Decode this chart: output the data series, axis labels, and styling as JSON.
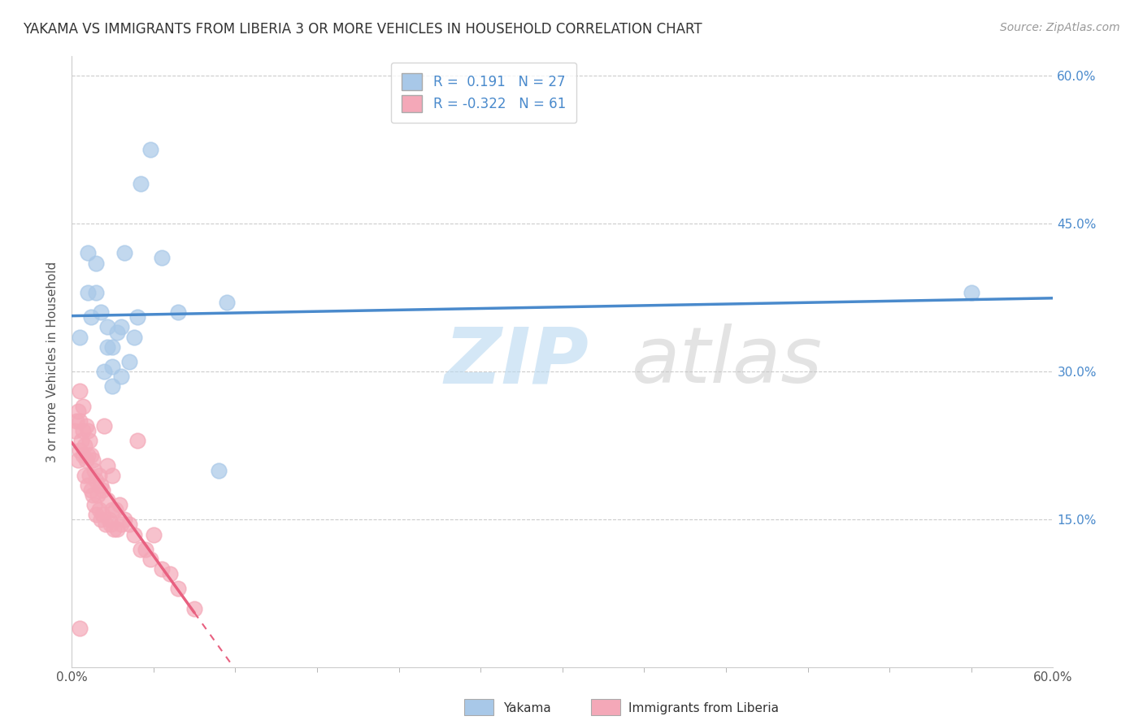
{
  "title": "YAKAMA VS IMMIGRANTS FROM LIBERIA 3 OR MORE VEHICLES IN HOUSEHOLD CORRELATION CHART",
  "source": "Source: ZipAtlas.com",
  "ylabel": "3 or more Vehicles in Household",
  "xmin": 0.0,
  "xmax": 0.6,
  "ymin": 0.0,
  "ymax": 0.62,
  "legend_r1": "R =  0.191",
  "legend_n1": "N = 27",
  "legend_r2": "R = -0.322",
  "legend_n2": "N = 61",
  "yakama_color": "#a8c8e8",
  "liberia_color": "#f4a8b8",
  "yakama_line_color": "#4a8acc",
  "liberia_line_color": "#e86080",
  "yakama_points_x": [
    0.005,
    0.01,
    0.01,
    0.012,
    0.015,
    0.015,
    0.018,
    0.02,
    0.022,
    0.022,
    0.025,
    0.025,
    0.025,
    0.028,
    0.03,
    0.03,
    0.032,
    0.035,
    0.038,
    0.04,
    0.042,
    0.048,
    0.055,
    0.065,
    0.09,
    0.095,
    0.55
  ],
  "yakama_points_y": [
    0.335,
    0.38,
    0.42,
    0.355,
    0.38,
    0.41,
    0.36,
    0.3,
    0.325,
    0.345,
    0.285,
    0.305,
    0.325,
    0.34,
    0.295,
    0.345,
    0.42,
    0.31,
    0.335,
    0.355,
    0.49,
    0.525,
    0.415,
    0.36,
    0.2,
    0.37,
    0.38
  ],
  "liberia_points_x": [
    0.002,
    0.003,
    0.004,
    0.004,
    0.005,
    0.005,
    0.005,
    0.006,
    0.007,
    0.007,
    0.007,
    0.008,
    0.008,
    0.009,
    0.009,
    0.01,
    0.01,
    0.01,
    0.011,
    0.011,
    0.012,
    0.012,
    0.013,
    0.013,
    0.014,
    0.014,
    0.015,
    0.015,
    0.016,
    0.017,
    0.017,
    0.018,
    0.018,
    0.019,
    0.019,
    0.02,
    0.021,
    0.022,
    0.022,
    0.023,
    0.024,
    0.025,
    0.025,
    0.026,
    0.027,
    0.028,
    0.029,
    0.03,
    0.032,
    0.035,
    0.038,
    0.04,
    0.042,
    0.045,
    0.048,
    0.05,
    0.055,
    0.06,
    0.065,
    0.075,
    0.005
  ],
  "liberia_points_y": [
    0.24,
    0.25,
    0.21,
    0.26,
    0.22,
    0.25,
    0.28,
    0.23,
    0.215,
    0.24,
    0.265,
    0.195,
    0.225,
    0.21,
    0.245,
    0.185,
    0.215,
    0.24,
    0.195,
    0.23,
    0.18,
    0.215,
    0.175,
    0.21,
    0.165,
    0.2,
    0.155,
    0.19,
    0.175,
    0.16,
    0.195,
    0.15,
    0.185,
    0.155,
    0.18,
    0.245,
    0.145,
    0.17,
    0.205,
    0.15,
    0.145,
    0.16,
    0.195,
    0.14,
    0.16,
    0.14,
    0.165,
    0.145,
    0.15,
    0.145,
    0.135,
    0.23,
    0.12,
    0.12,
    0.11,
    0.135,
    0.1,
    0.095,
    0.08,
    0.06,
    0.04
  ]
}
